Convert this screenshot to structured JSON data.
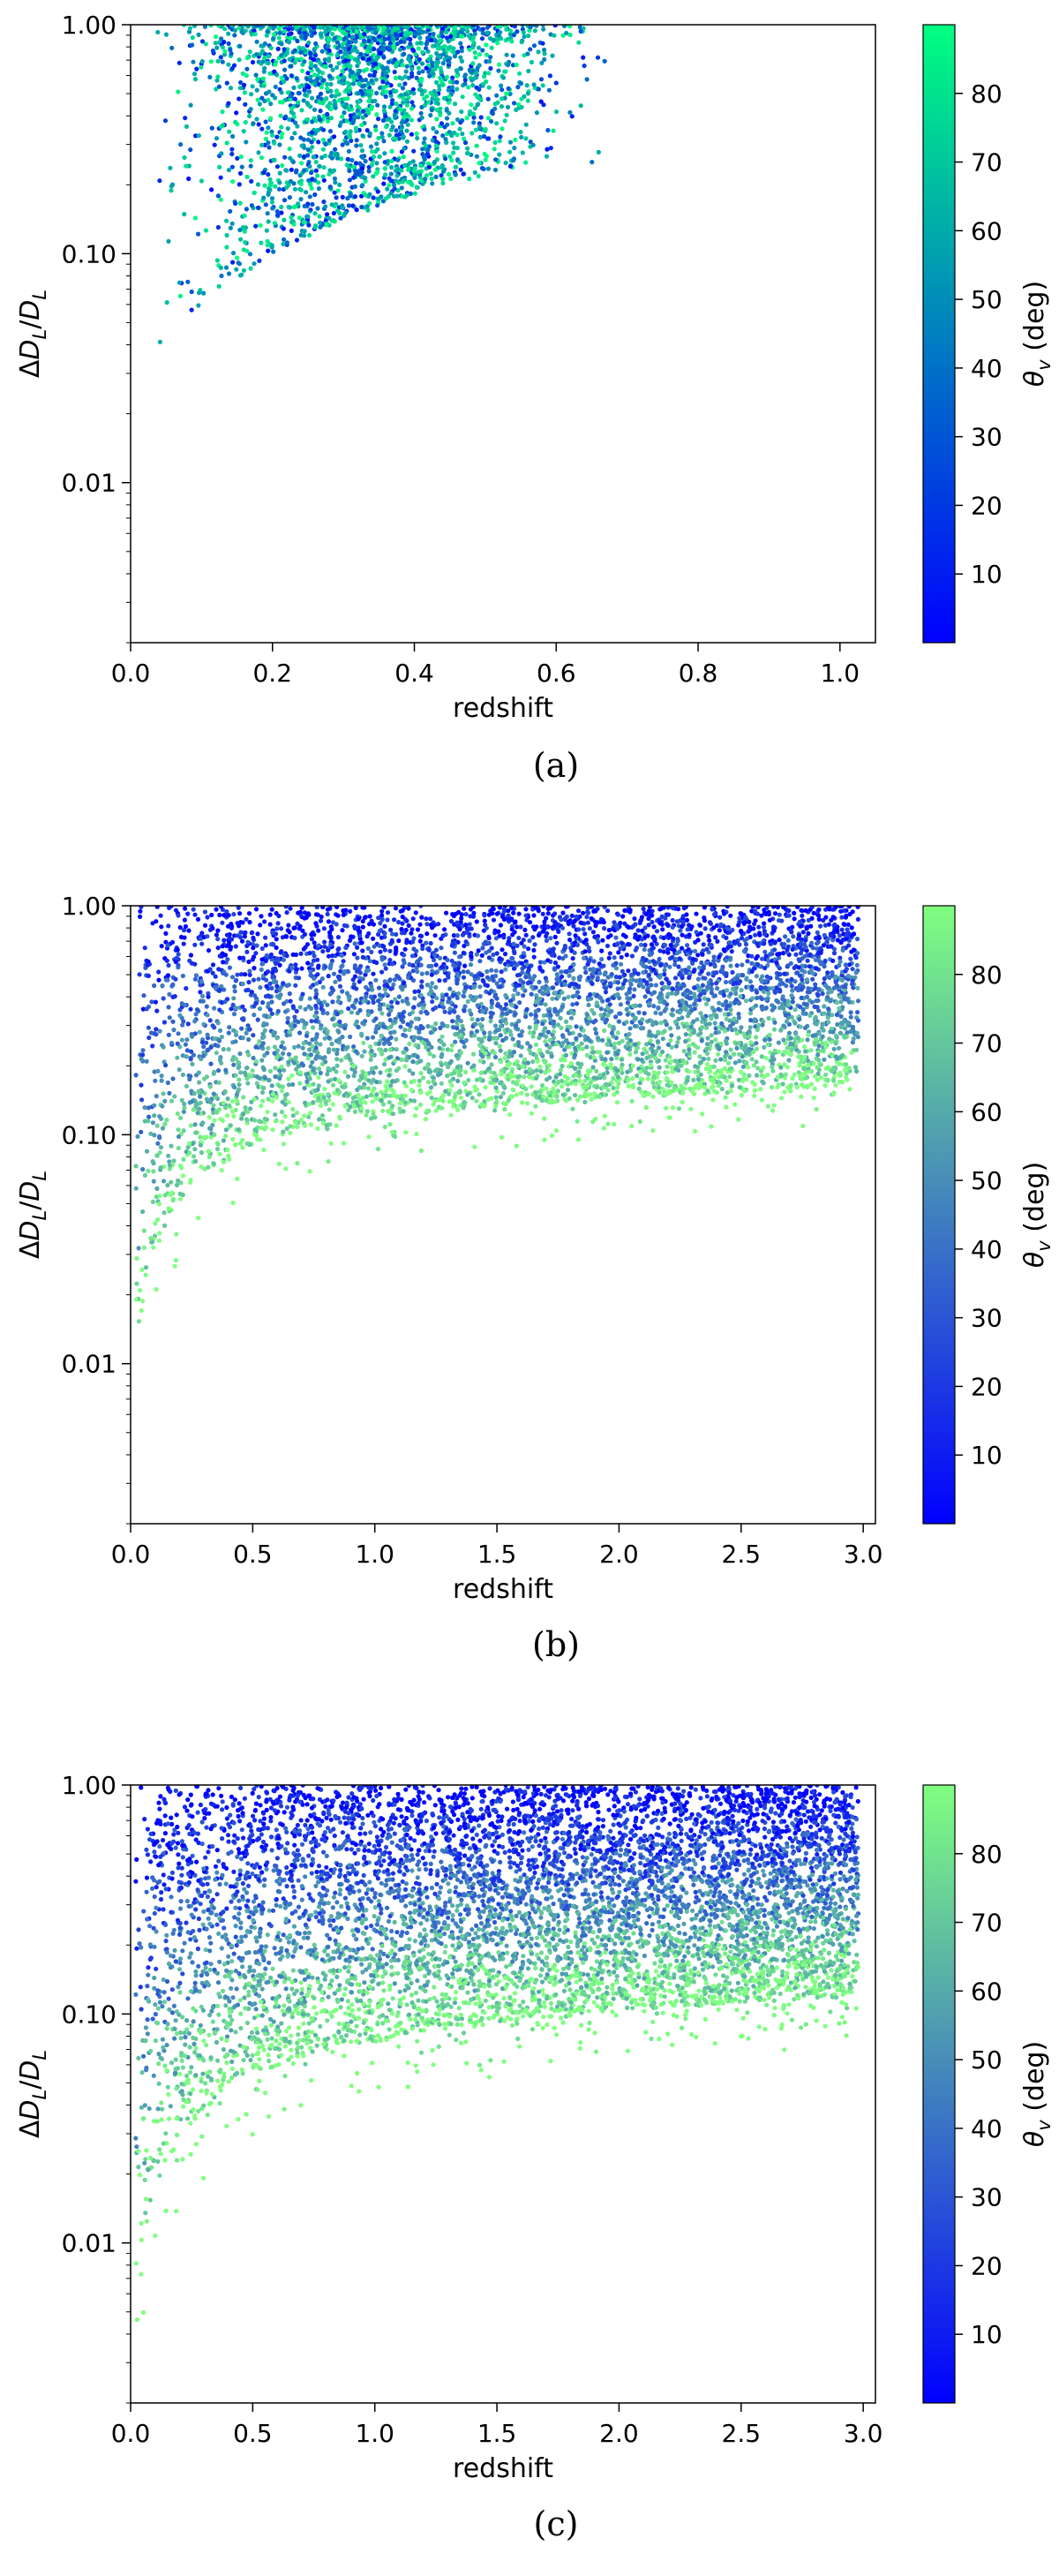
{
  "chart_data": [
    {
      "type": "scatter",
      "caption": "(a)",
      "xlabel": "redshift",
      "ylabel": "ΔD_L/D_L",
      "ylabel_parts": [
        "Δ",
        "D",
        "L",
        "/",
        "D",
        "L"
      ],
      "colorbar_label": "θ_v (deg)",
      "colorbar_label_parts": [
        "θ",
        "v",
        " (deg)"
      ],
      "xlim": [
        0,
        1.05
      ],
      "ylim": [
        0.002,
        1.0
      ],
      "yscale": "log",
      "x_ticks": [
        0.0,
        0.2,
        0.4,
        0.6,
        0.8,
        1.0
      ],
      "x_tick_labels": [
        "0.0",
        "0.2",
        "0.4",
        "0.6",
        "0.8",
        "1.0"
      ],
      "y_ticks": [
        0.01,
        0.1,
        1.0
      ],
      "y_tick_labels": [
        "0.01",
        "0.10",
        "1.00"
      ],
      "colorbar_ticks": [
        10,
        20,
        30,
        40,
        50,
        60,
        70,
        80
      ],
      "colorbar_tick_labels": [
        "10",
        "20",
        "30",
        "40",
        "50",
        "60",
        "70",
        "80"
      ],
      "colorbar_range": [
        0,
        90
      ],
      "colormap": {
        "low": "#0000ff",
        "high": "#00ff80"
      },
      "cloud": {
        "num_points": 2400,
        "z_min": 0.02,
        "z_max": 0.7,
        "z_peak": 0.3,
        "y_floor_at_zmin": 0.025,
        "y_floor_at_zmax": 0.25,
        "seed": 11
      }
    },
    {
      "type": "scatter",
      "caption": "(b)",
      "xlabel": "redshift",
      "ylabel": "ΔD_L/D_L",
      "ylabel_parts": [
        "Δ",
        "D",
        "L",
        "/",
        "D",
        "L"
      ],
      "colorbar_label": "θ_v (deg)",
      "colorbar_label_parts": [
        "θ",
        "v",
        " (deg)"
      ],
      "xlim": [
        0,
        3.05
      ],
      "ylim": [
        0.002,
        1.0
      ],
      "yscale": "log",
      "x_ticks": [
        0.0,
        0.5,
        1.0,
        1.5,
        2.0,
        2.5,
        3.0
      ],
      "x_tick_labels": [
        "0.0",
        "0.5",
        "1.0",
        "1.5",
        "2.0",
        "2.5",
        "3.0"
      ],
      "y_ticks": [
        0.01,
        0.1,
        1.0
      ],
      "y_tick_labels": [
        "0.01",
        "0.10",
        "1.00"
      ],
      "colorbar_ticks": [
        10,
        20,
        30,
        40,
        50,
        60,
        70,
        80
      ],
      "colorbar_tick_labels": [
        "10",
        "20",
        "30",
        "40",
        "50",
        "60",
        "70",
        "80"
      ],
      "colorbar_range": [
        0,
        90
      ],
      "colormap": {
        "low": "#0000ff",
        "high": "#80ff80"
      },
      "cloud": {
        "num_points": 5500,
        "z_min": 0.02,
        "z_max": 2.98,
        "floor_a": 0.004,
        "floor_b": 0.1,
        "floor_scale": 0.35,
        "seed": 23
      }
    },
    {
      "type": "scatter",
      "caption": "(c)",
      "xlabel": "redshift",
      "ylabel": "ΔD_L/D_L",
      "ylabel_parts": [
        "Δ",
        "D",
        "L",
        "/",
        "D",
        "L"
      ],
      "colorbar_label": "θ_v (deg)",
      "colorbar_label_parts": [
        "θ",
        "v",
        " (deg)"
      ],
      "xlim": [
        0,
        3.05
      ],
      "ylim": [
        0.002,
        1.0
      ],
      "yscale": "log",
      "x_ticks": [
        0.0,
        0.5,
        1.0,
        1.5,
        2.0,
        2.5,
        3.0
      ],
      "x_tick_labels": [
        "0.0",
        "0.5",
        "1.0",
        "1.5",
        "2.0",
        "2.5",
        "3.0"
      ],
      "y_ticks": [
        0.01,
        0.1,
        1.0
      ],
      "y_tick_labels": [
        "0.01",
        "0.10",
        "1.00"
      ],
      "colorbar_ticks": [
        10,
        20,
        30,
        40,
        50,
        60,
        70,
        80
      ],
      "colorbar_tick_labels": [
        "10",
        "20",
        "30",
        "40",
        "50",
        "60",
        "70",
        "80"
      ],
      "colorbar_range": [
        0,
        90
      ],
      "colormap": {
        "low": "#0000ff",
        "high": "#80ff80"
      },
      "cloud": {
        "num_points": 7000,
        "z_min": 0.02,
        "z_max": 2.98,
        "floor_a": 0.003,
        "floor_b": 0.06,
        "floor_scale": 0.45,
        "seed": 37
      }
    }
  ]
}
